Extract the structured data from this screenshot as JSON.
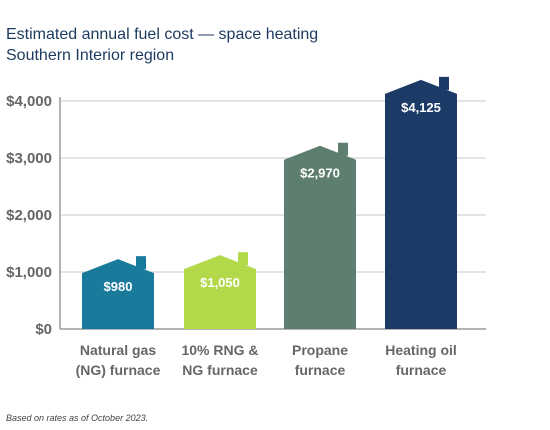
{
  "header": {
    "title_line1": "Estimated annual fuel cost — space heating",
    "title_line2": "Southern Interior region"
  },
  "footnote": "Based on rates as of October 2023.",
  "chart_data": {
    "type": "bar",
    "title": "Estimated annual fuel cost — space heating",
    "subtitle": "Southern Interior region",
    "xlabel": "",
    "ylabel": "",
    "ylim": [
      0,
      4000
    ],
    "yticks": [
      0,
      1000,
      2000,
      3000,
      4000
    ],
    "ytick_labels": [
      "$0",
      "$1,000",
      "$2,000",
      "$3,000",
      "$4,000"
    ],
    "grid": true,
    "categories": [
      [
        "Natural gas",
        "(NG) furnace"
      ],
      [
        "10% RNG &",
        "NG furnace"
      ],
      [
        "Propane",
        "furnace"
      ],
      [
        "Heating oil",
        "furnace"
      ]
    ],
    "values": [
      980,
      1050,
      2970,
      4125
    ],
    "value_labels": [
      "$980",
      "$1,050",
      "$2,970",
      "$4,125"
    ],
    "colors": [
      "#1a7a9b",
      "#b2d94a",
      "#5e7f70",
      "#1c3a66"
    ],
    "bar_shape": "house"
  }
}
